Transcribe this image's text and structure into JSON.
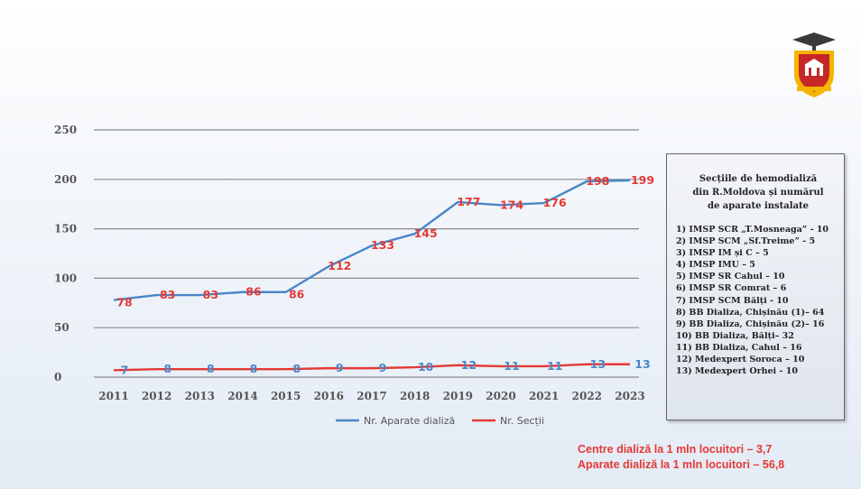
{
  "chart_data": {
    "type": "line",
    "title": "",
    "xlabel": "",
    "ylabel": "",
    "ylim": [
      0,
      250
    ],
    "yticks": [
      0,
      50,
      100,
      150,
      200,
      250
    ],
    "grid": true,
    "legend_position": "bottom",
    "categories": [
      "2011",
      "2012",
      "2013",
      "2014",
      "2015",
      "2016",
      "2017",
      "2018",
      "2019",
      "2020",
      "2021",
      "2022",
      "2023"
    ],
    "series": [
      {
        "name": "Nr. Aparate dializă",
        "color": "#4a86c8",
        "label_color": "#e53935",
        "values": [
          78,
          83,
          83,
          86,
          86,
          112,
          133,
          145,
          177,
          174,
          176,
          198,
          199
        ]
      },
      {
        "name": "Nr. Secții",
        "color": "#e53935",
        "label_color": "#4a86c8",
        "values": [
          7,
          8,
          8,
          8,
          8,
          9,
          9,
          10,
          12,
          11,
          11,
          13,
          13
        ]
      }
    ]
  },
  "info_box": {
    "title_lines": [
      "Secțiile de hemodializă",
      "din R.Moldova și numărul",
      "de aparate instalate"
    ],
    "items": [
      "1) IMSP SCR „T.Mosneaga” - 10",
      "2) IMSP SCM „Sf.Treime” - 5",
      "3) IMSP IM și C – 5",
      "4) IMSP IMU – 5",
      "5) IMSP SR Cahul – 10",
      "6) IMSP SR Comrat – 6",
      "7) IMSP SCM Bălți - 10",
      "8) BB Dializa, Chișinău (1)– 64",
      "9) BB Dializa, Chișinău (2)– 16",
      "10) BB Dializa, Bălți– 32",
      "11) BB Dializa, Cahul – 16",
      "12) Medexpert Soroca – 10",
      "13) Medexpert Orhei - 10"
    ]
  },
  "stats": {
    "line1": "Centre dializă la 1 mln locuitori – 3,7",
    "line2": "Aparate dializă la 1 mln locuitori – 56,8"
  },
  "logo": {
    "icon": "university-crest-icon",
    "colors": {
      "shield": "#c62828",
      "gold": "#f5b400"
    }
  }
}
